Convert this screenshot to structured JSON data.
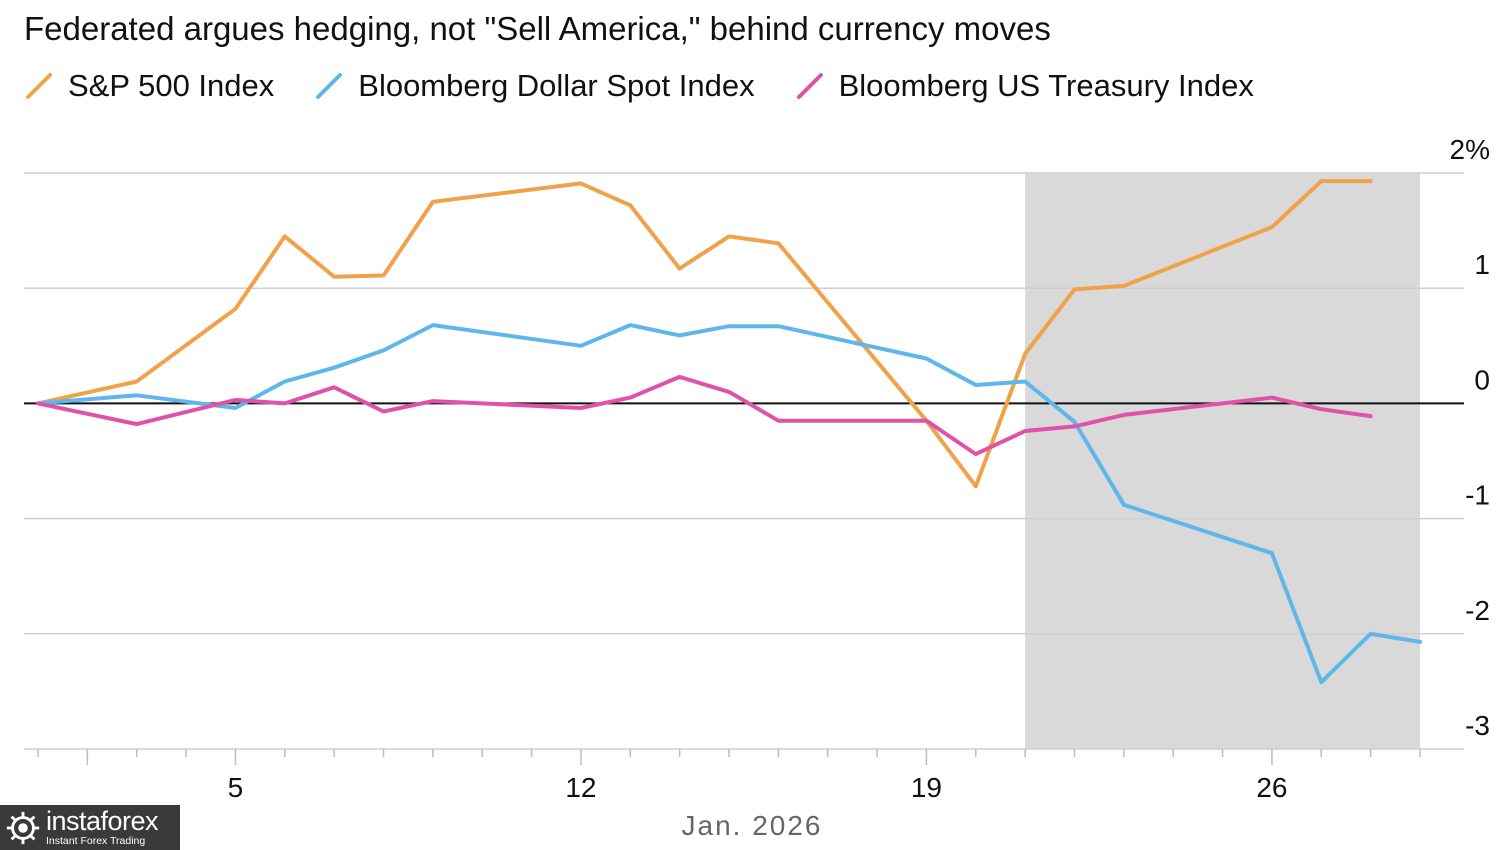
{
  "chart_data": {
    "type": "line",
    "title": "Federated argues hedging, not \"Sell America,\" behind currency moves",
    "xlabel": "Jan. 2026",
    "ylabel": "",
    "x_range": [
      1,
      29
    ],
    "x_ticks": [
      {
        "value": 5,
        "label": "5"
      },
      {
        "value": 12,
        "label": "12"
      },
      {
        "value": 19,
        "label": "19"
      },
      {
        "value": 26,
        "label": "26"
      }
    ],
    "ylim": [
      -3,
      2
    ],
    "y_ticks": [
      {
        "value": 2,
        "label": "2%"
      },
      {
        "value": 1,
        "label": "1"
      },
      {
        "value": 0,
        "label": "0"
      },
      {
        "value": -1,
        "label": "-1"
      },
      {
        "value": -2,
        "label": "-2"
      },
      {
        "value": -3,
        "label": "-3"
      }
    ],
    "grid": true,
    "zero_line": true,
    "shaded_region": {
      "x_start": 21,
      "x_end": 29
    },
    "legend_position": "top-left",
    "series": [
      {
        "name": "S&P 500 Index",
        "color": "#f0a24b",
        "points": [
          [
            1,
            0
          ],
          [
            3,
            0.19
          ],
          [
            5,
            0.82
          ],
          [
            6,
            1.45
          ],
          [
            7,
            1.1
          ],
          [
            8,
            1.11
          ],
          [
            9,
            1.75
          ],
          [
            12,
            1.91
          ],
          [
            13,
            1.72
          ],
          [
            14,
            1.17
          ],
          [
            15,
            1.45
          ],
          [
            16,
            1.39
          ],
          [
            19,
            -0.15
          ],
          [
            20,
            -0.72
          ],
          [
            21,
            0.43
          ],
          [
            22,
            0.99
          ],
          [
            23,
            1.02
          ],
          [
            26,
            1.53
          ],
          [
            27,
            1.93
          ],
          [
            28,
            1.93
          ]
        ]
      },
      {
        "name": "Bloomberg Dollar Spot Index",
        "color": "#5fb6ea",
        "points": [
          [
            1,
            0
          ],
          [
            3,
            0.07
          ],
          [
            5,
            -0.04
          ],
          [
            6,
            0.19
          ],
          [
            7,
            0.31
          ],
          [
            8,
            0.46
          ],
          [
            9,
            0.68
          ],
          [
            12,
            0.5
          ],
          [
            13,
            0.68
          ],
          [
            14,
            0.59
          ],
          [
            15,
            0.67
          ],
          [
            16,
            0.67
          ],
          [
            19,
            0.39
          ],
          [
            20,
            0.16
          ],
          [
            21,
            0.19
          ],
          [
            22,
            -0.16
          ],
          [
            23,
            -0.88
          ],
          [
            26,
            -1.3
          ],
          [
            27,
            -2.42
          ],
          [
            28,
            -2.0
          ],
          [
            29,
            -2.07
          ]
        ]
      },
      {
        "name": "Bloomberg US Treasury Index",
        "color": "#e052a8",
        "points": [
          [
            1,
            0
          ],
          [
            3,
            -0.18
          ],
          [
            5,
            0.03
          ],
          [
            6,
            0.0
          ],
          [
            7,
            0.14
          ],
          [
            8,
            -0.07
          ],
          [
            9,
            0.02
          ],
          [
            12,
            -0.04
          ],
          [
            13,
            0.05
          ],
          [
            14,
            0.23
          ],
          [
            15,
            0.1
          ],
          [
            16,
            -0.15
          ],
          [
            19,
            -0.15
          ],
          [
            20,
            -0.44
          ],
          [
            21,
            -0.24
          ],
          [
            22,
            -0.2
          ],
          [
            23,
            -0.1
          ],
          [
            26,
            0.05
          ],
          [
            27,
            -0.05
          ],
          [
            28,
            -0.11
          ]
        ]
      }
    ]
  },
  "watermark": {
    "name": "instaforex",
    "tagline": "Instant Forex Trading",
    "icon": "gear-globe-icon"
  }
}
